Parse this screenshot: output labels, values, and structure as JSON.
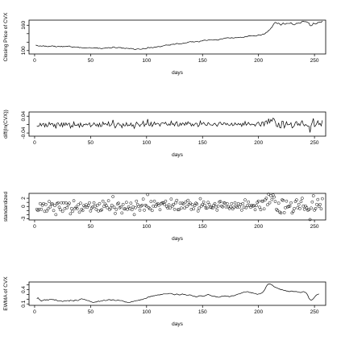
{
  "chart_data": [
    {
      "type": "line",
      "ylabel": "Closing Price of CVX",
      "xlabel": "days",
      "xlim": [
        -5,
        260
      ],
      "ylim": [
        92,
        172
      ],
      "xticks": [
        0,
        50,
        100,
        150,
        200,
        250
      ],
      "yticks": [
        100,
        120,
        140,
        160
      ],
      "yticks_shown": [
        "100",
        "",
        "",
        "160"
      ],
      "x_start": 1,
      "values": [
        113,
        112.2,
        111.2,
        110.5,
        111.2,
        110.5,
        110.8,
        111.5,
        110.3,
        110.8,
        109.7,
        109.1,
        110.3,
        110.2,
        110.8,
        111.4,
        110.4,
        110.6,
        108.6,
        109.3,
        110.2,
        110,
        109.2,
        110.1,
        108.9,
        109.8,
        109.3,
        110.2,
        109.9,
        110.3,
        111.1,
        109.3,
        108.8,
        107.6,
        109,
        108.5,
        108.3,
        107.8,
        108.2,
        106.8,
        107.6,
        106.9,
        105.9,
        106.1,
        106,
        106.4,
        106.2,
        106.4,
        107.3,
        106.2,
        105.8,
        105.7,
        106.6,
        106.7,
        106,
        106.3,
        105.2,
        105.9,
        104.9,
        104.1,
        105.4,
        105.4,
        106,
        106.2,
        105.9,
        107.3,
        106.5,
        106.1,
        106.4,
        108.8,
        108.6,
        106.9,
        106.2,
        106.8,
        107.6,
        107.3,
        107.2,
        105.6,
        106.1,
        105.5,
        104.9,
        105.9,
        105.2,
        105.1,
        104.6,
        105.4,
        104.6,
        104.5,
        102.6,
        102.3,
        103.5,
        104,
        104,
        103.1,
        103.2,
        103.5,
        105.2,
        104.3,
        104.6,
        104.7,
        107.5,
        107.2,
        106.6,
        107.8,
        106.8,
        106.9,
        108.2,
        108.2,
        108.7,
        109.4,
        109.7,
        108.9,
        109.6,
        110.5,
        111.4,
        111.9,
        113.2,
        113.2,
        112.8,
        113.2,
        112.8,
        114.7,
        114.8,
        115.3,
        114.6,
        115.6,
        117.2,
        116.4,
        115.6,
        116.4,
        116,
        116.9,
        117.5,
        117.1,
        118.3,
        118.3,
        119.9,
        120.5,
        121.4,
        120.6,
        121,
        120.3,
        120.5,
        121.4,
        122.1,
        120.9,
        120.4,
        122.5,
        122.6,
        123.2,
        124.5,
        124.8,
        124.3,
        123.8,
        125,
        125.6,
        125.4,
        125.2,
        124.7,
        125.1,
        125.9,
        125.8,
        124.8,
        124.9,
        126.2,
        127.6,
        127.7,
        127.6,
        128.7,
        129.7,
        129.6,
        130.4,
        130.3,
        129.7,
        129.6,
        130.5,
        129.8,
        129.5,
        130.6,
        130.7,
        130.5,
        131.3,
        131.2,
        131.8,
        130.7,
        131.6,
        131.3,
        133.3,
        132.9,
        133.2,
        134.6,
        134.9,
        134.6,
        135,
        135.1,
        135.3,
        134.3,
        134.6,
        135.8,
        137.4,
        137.1,
        136.1,
        137.7,
        139.4,
        138.6,
        140.7,
        143.3,
        143.8,
        147.9,
        149.1,
        152.8,
        155.3,
        160.2,
        164.5,
        166.7,
        165.4,
        163.7,
        165.1,
        162.7,
        160.1,
        162.8,
        165.4,
        162.8,
        162.3,
        164.5,
        164.3,
        164.3,
        164.4,
        165.9,
        163.3,
        161.4,
        160.7,
        162.5,
        164.9,
        164.4,
        165.2,
        164.4,
        166.2,
        169.3,
        169.4,
        168.3,
        168.4,
        167.9,
        166.5,
        165.3,
        159.2,
        158.6,
        160.3,
        165.1,
        163.5,
        162.7,
        163.6,
        166.6,
        166.6,
        167.5,
        166.5,
        169.9
      ]
    },
    {
      "type": "line",
      "ylabel": "diff(ln(CVX))",
      "xlabel": "days",
      "xlim": [
        -5,
        260
      ],
      "ylim": [
        -0.055,
        0.06
      ],
      "xticks": [
        0,
        50,
        100,
        150,
        200,
        250
      ],
      "yticks": [
        -0.04,
        0.0,
        0.04
      ],
      "yticks_shown": [
        "-0.04",
        "",
        "0.04"
      ],
      "x_start": 2,
      "values": [
        -0.0071,
        -0.009,
        -0.0063,
        0.0063,
        -0.0063,
        0.0027,
        0.0063,
        -0.0109,
        0.0045,
        -0.01,
        -0.0055,
        0.0109,
        -0.0009,
        0.0054,
        0.0054,
        -0.0091,
        0.0018,
        -0.0182,
        0.0064,
        0.0082,
        -0.0018,
        -0.0073,
        0.0082,
        -0.0109,
        0.0082,
        -0.0046,
        0.0082,
        -0.0027,
        0.0036,
        0.0072,
        -0.0163,
        -0.0046,
        -0.0111,
        0.0129,
        -0.0046,
        -0.0019,
        -0.0046,
        0.0037,
        -0.013,
        0.0075,
        -0.0066,
        -0.0094,
        0.0019,
        -0.0009,
        0.0038,
        -0.0019,
        0.0019,
        0.0084,
        -0.0103,
        -0.0038,
        -0.0009,
        0.0085,
        0.0009,
        -0.0066,
        0.0028,
        -0.0104,
        0.0066,
        -0.0095,
        -0.0077,
        0.0124,
        0,
        0.0057,
        0.0019,
        -0.0028,
        0.0131,
        -0.0075,
        -0.0038,
        0.0028,
        0.0223,
        -0.0018,
        -0.0158,
        -0.0066,
        0.0056,
        0.0075,
        -0.0028,
        -0.0009,
        -0.015,
        0.0047,
        -0.0057,
        -0.0057,
        0.0095,
        -0.0066,
        -0.001,
        -0.0048,
        0.0076,
        -0.0076,
        -0.001,
        -0.0183,
        -0.0029,
        0.0117,
        0.0048,
        0,
        -0.0087,
        0.001,
        0.0029,
        0.0163,
        -0.0086,
        0.0029,
        0.001,
        0.0264,
        -0.0028,
        -0.0056,
        0.0112,
        -0.0093,
        0.0009,
        0.0121,
        0,
        0.0046,
        0.0064,
        0.0027,
        -0.0073,
        0.0064,
        0.0082,
        0.0081,
        0.0045,
        0.0115,
        0,
        -0.0035,
        0.0035,
        -0.0035,
        0.0167,
        0.0009,
        0.0043,
        -0.0061,
        0.0087,
        0.0137,
        -0.0069,
        -0.0069,
        0.0069,
        -0.0034,
        0.0077,
        0.0051,
        -0.0034,
        0.0102,
        0,
        0.0134,
        0.005,
        0.0074,
        -0.0066,
        0.0033,
        -0.0058,
        0.0017,
        0.0074,
        0.0058,
        -0.0099,
        -0.0041,
        0.0173,
        0.0008,
        0.0049,
        0.0105,
        0.0024,
        -0.004,
        -0.004,
        0.0096,
        0.0048,
        -0.0016,
        -0.0016,
        -0.004,
        0.0032,
        0.0064,
        -0.0008,
        -0.008,
        0.0008,
        0.0103,
        0.011,
        0.0008,
        -0.0008,
        0.0086,
        0.0077,
        -0.0008,
        0.0062,
        -0.0008,
        -0.0046,
        -0.0008,
        0.0069,
        -0.0054,
        -0.0023,
        0.0085,
        0.0008,
        -0.0015,
        0.0061,
        -0.0008,
        0.0046,
        -0.0084,
        0.0069,
        -0.0023,
        0.0151,
        -0.003,
        0.0023,
        0.0105,
        0.0022,
        -0.0022,
        0.003,
        0.0007,
        0.0015,
        -0.0074,
        0.0022,
        0.0089,
        0.0117,
        -0.0022,
        -0.0073,
        0.0117,
        0.0123,
        -0.0058,
        0.0151,
        0.0184,
        0.0035,
        0.0281,
        0.0081,
        0.0245,
        0.0162,
        0.031,
        0.0265,
        0.0133,
        -0.0078,
        -0.0104,
        0.0085,
        -0.0146,
        -0.0161,
        0.0167,
        0.0158,
        -0.0158,
        -0.0031,
        0.0135,
        -0.0012,
        0,
        0.0006,
        0.0091,
        -0.0158,
        -0.0117,
        -0.0044,
        0.0112,
        0.0147,
        -0.003,
        0.0049,
        -0.0049,
        0.0109,
        0.0185,
        0.0006,
        -0.0065,
        0.0006,
        -0.003,
        -0.0084,
        -0.0072,
        -0.0376,
        -0.0038,
        0.0107,
        0.0295,
        -0.0097,
        -0.0049,
        0.0055,
        0.0182,
        0,
        0.0054,
        -0.006,
        0.0202
      ]
    },
    {
      "type": "scatter",
      "ylabel": "standardized",
      "xlabel": "days",
      "xlim": [
        -5,
        260
      ],
      "ylim": [
        -3.3,
        3.2
      ],
      "xticks": [
        0,
        50,
        100,
        150,
        200,
        250
      ],
      "yticks": [
        -3,
        -2,
        -1,
        0,
        1,
        2
      ],
      "yticks_shown": [
        "-3",
        "",
        "",
        "0",
        "",
        "2"
      ],
      "x_start": 2,
      "values": [
        -0.7,
        -1.0,
        -0.7,
        0.7,
        -0.7,
        0.3,
        0.7,
        -1.2,
        0.5,
        -1.1,
        -0.6,
        1.2,
        -0.1,
        0.6,
        0.6,
        -1.0,
        0.2,
        -2.0,
        0.7,
        0.9,
        -0.2,
        -0.8,
        0.9,
        -1.2,
        0.9,
        -0.5,
        0.9,
        -0.3,
        0.4,
        0.8,
        -1.8,
        -0.5,
        -1.2,
        1.4,
        -0.5,
        -0.2,
        -0.5,
        0.4,
        -1.4,
        0.8,
        -0.7,
        -1.0,
        0.2,
        -0.1,
        0.4,
        -0.2,
        0.2,
        0.9,
        -1.1,
        -0.4,
        -0.1,
        0.9,
        0.1,
        -0.7,
        0.3,
        -1.1,
        0.7,
        -1.0,
        -0.8,
        1.3,
        0,
        0.6,
        0.2,
        -0.3,
        1.4,
        -0.8,
        -0.4,
        0.3,
        2.4,
        -0.2,
        -1.7,
        -0.7,
        0.6,
        0.8,
        -0.3,
        -0.1,
        -1.6,
        0.5,
        -0.6,
        -0.6,
        1.0,
        -0.7,
        -0.1,
        -0.5,
        0.8,
        -0.8,
        -0.1,
        -2.0,
        -0.3,
        1.3,
        0.5,
        0,
        -0.9,
        0.1,
        0.3,
        1.8,
        -0.9,
        0.3,
        0.1,
        2.9,
        -0.3,
        -0.6,
        1.2,
        -1.0,
        0.1,
        1.3,
        0,
        0.5,
        0.7,
        0.3,
        -0.8,
        0.7,
        0.9,
        0.9,
        0.5,
        1.3,
        0,
        -0.4,
        0.4,
        -0.4,
        1.8,
        0.1,
        0.5,
        -0.7,
        0.9,
        1.5,
        -0.8,
        -0.8,
        0.8,
        -0.4,
        0.8,
        0.6,
        -0.4,
        1.1,
        0,
        1.5,
        0.5,
        0.8,
        -0.7,
        0.4,
        -0.6,
        0.2,
        0.8,
        0.6,
        -1.1,
        -0.4,
        1.9,
        0.1,
        0.5,
        1.1,
        0.3,
        -0.4,
        -0.4,
        1.0,
        0.5,
        -0.2,
        -0.2,
        -0.4,
        0.3,
        0.7,
        -0.1,
        -0.9,
        0.1,
        1.1,
        1.2,
        0.1,
        -0.1,
        0.9,
        0.8,
        -0.1,
        0.7,
        -0.1,
        -0.5,
        -0.1,
        0.7,
        -0.6,
        -0.2,
        0.9,
        0.1,
        -0.2,
        0.7,
        -0.1,
        0.5,
        -0.9,
        0.7,
        -0.2,
        1.6,
        -0.3,
        0.2,
        1.1,
        0.2,
        -0.2,
        0.3,
        0.1,
        0.2,
        -0.8,
        0.2,
        1.0,
        1.3,
        -0.2,
        -0.8,
        1.3,
        1.3,
        -0.6,
        1.6,
        2.0,
        0.4,
        3.0,
        0.9,
        2.6,
        1.7,
        2.8,
        2.3,
        1.2,
        -0.7,
        -1.0,
        0.8,
        -1.4,
        -1.6,
        1.6,
        1.5,
        -1.5,
        -0.3,
        1.3,
        -0.1,
        0,
        0.1,
        0.9,
        -1.6,
        -1.2,
        -0.5,
        1.2,
        1.6,
        -0.3,
        0.5,
        -0.5,
        1.2,
        2.0,
        0.1,
        -0.7,
        0.1,
        -0.3,
        -0.9,
        -0.8,
        -3.2,
        -0.4,
        1.1,
        2.6,
        -0.9,
        -0.5,
        0.5,
        1.7,
        0,
        0.5,
        -0.6,
        1.9
      ]
    },
    {
      "type": "line",
      "ylabel": "EWMA of CVX",
      "xlabel": "days",
      "xlim": [
        -5,
        260
      ],
      "ylim": [
        0.07,
        0.56
      ],
      "xticks": [
        0,
        50,
        100,
        150,
        200,
        250
      ],
      "yticks": [
        0.1,
        0.2,
        0.3,
        0.4,
        0.5
      ],
      "yticks_shown": [
        "0.1",
        "",
        "",
        "0.4",
        ""
      ],
      "x_start": 2,
      "values": [
        0.21,
        0.23,
        0.2,
        0.18,
        0.16,
        0.17,
        0.18,
        0.19,
        0.18,
        0.19,
        0.18,
        0.19,
        0.2,
        0.2,
        0.19,
        0.19,
        0.18,
        0.19,
        0.17,
        0.16,
        0.16,
        0.17,
        0.16,
        0.15,
        0.16,
        0.17,
        0.16,
        0.17,
        0.17,
        0.16,
        0.18,
        0.17,
        0.17,
        0.16,
        0.18,
        0.18,
        0.17,
        0.17,
        0.19,
        0.2,
        0.21,
        0.2,
        0.2,
        0.19,
        0.18,
        0.17,
        0.17,
        0.16,
        0.15,
        0.14,
        0.13,
        0.13,
        0.14,
        0.14,
        0.15,
        0.16,
        0.15,
        0.16,
        0.16,
        0.17,
        0.18,
        0.17,
        0.17,
        0.18,
        0.19,
        0.19,
        0.18,
        0.18,
        0.19,
        0.18,
        0.17,
        0.17,
        0.18,
        0.18,
        0.17,
        0.17,
        0.17,
        0.16,
        0.15,
        0.14,
        0.14,
        0.13,
        0.13,
        0.13,
        0.14,
        0.15,
        0.15,
        0.16,
        0.16,
        0.17,
        0.17,
        0.18,
        0.18,
        0.19,
        0.19,
        0.2,
        0.21,
        0.21,
        0.22,
        0.24,
        0.25,
        0.25,
        0.26,
        0.26,
        0.27,
        0.27,
        0.28,
        0.28,
        0.29,
        0.29,
        0.29,
        0.3,
        0.3,
        0.31,
        0.31,
        0.31,
        0.31,
        0.31,
        0.32,
        0.32,
        0.32,
        0.31,
        0.3,
        0.29,
        0.3,
        0.31,
        0.3,
        0.29,
        0.29,
        0.3,
        0.31,
        0.3,
        0.3,
        0.29,
        0.28,
        0.28,
        0.29,
        0.29,
        0.28,
        0.27,
        0.26,
        0.26,
        0.25,
        0.25,
        0.26,
        0.27,
        0.27,
        0.27,
        0.26,
        0.26,
        0.27,
        0.28,
        0.29,
        0.3,
        0.29,
        0.28,
        0.27,
        0.26,
        0.26,
        0.26,
        0.25,
        0.25,
        0.24,
        0.24,
        0.25,
        0.26,
        0.26,
        0.26,
        0.27,
        0.26,
        0.26,
        0.26,
        0.25,
        0.26,
        0.27,
        0.27,
        0.27,
        0.28,
        0.29,
        0.3,
        0.31,
        0.31,
        0.32,
        0.33,
        0.34,
        0.35,
        0.35,
        0.35,
        0.36,
        0.35,
        0.34,
        0.34,
        0.33,
        0.33,
        0.32,
        0.32,
        0.31,
        0.3,
        0.31,
        0.31,
        0.32,
        0.33,
        0.35,
        0.38,
        0.42,
        0.47,
        0.5,
        0.52,
        0.52,
        0.51,
        0.5,
        0.48,
        0.46,
        0.45,
        0.44,
        0.43,
        0.42,
        0.41,
        0.4,
        0.4,
        0.39,
        0.38,
        0.38,
        0.37,
        0.37,
        0.36,
        0.36,
        0.37,
        0.37,
        0.36,
        0.36,
        0.36,
        0.36,
        0.35,
        0.35,
        0.34,
        0.34,
        0.35,
        0.36,
        0.35,
        0.34,
        0.32,
        0.28,
        0.22,
        0.19,
        0.18,
        0.19,
        0.21,
        0.24,
        0.27,
        0.29,
        0.3,
        0.31
      ]
    }
  ]
}
